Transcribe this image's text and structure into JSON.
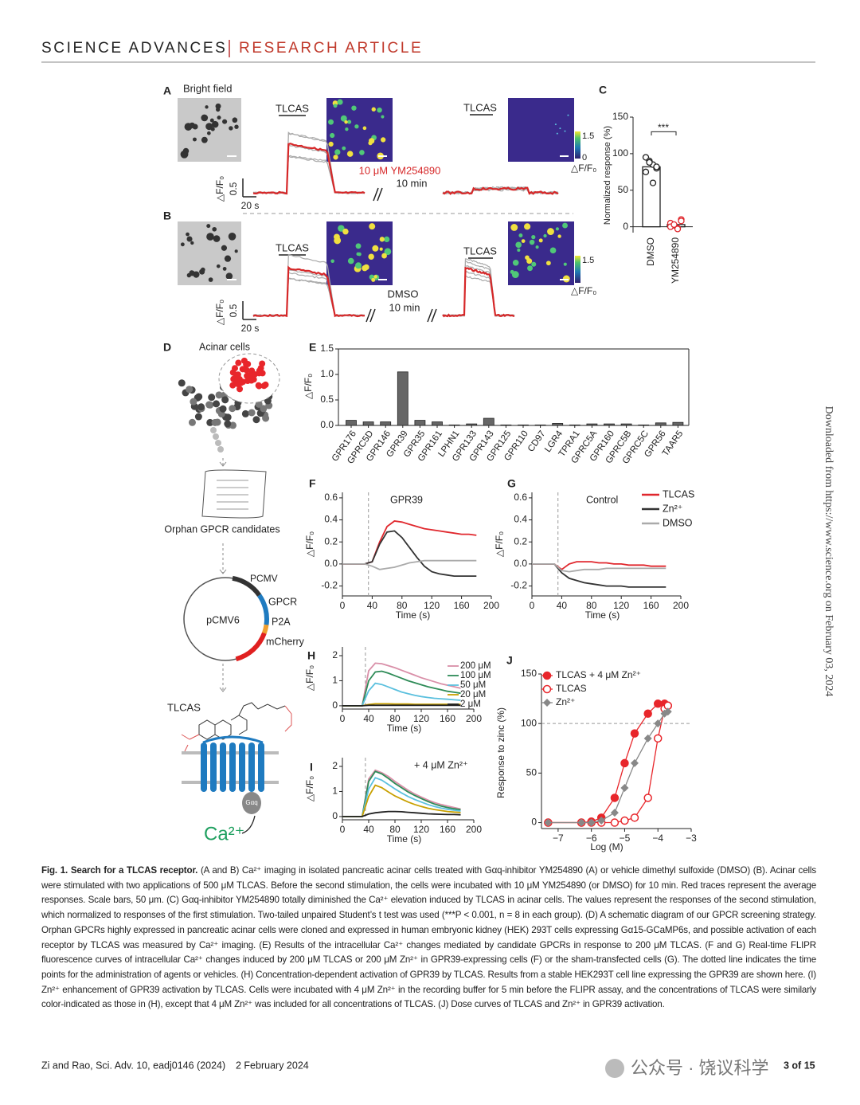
{
  "header": {
    "journal": "SCIENCE ADVANCES",
    "section": "RESEARCH ARTICLE"
  },
  "side_note": "Downloaded from https://www.science.org on February 03, 2024",
  "panel_A": {
    "label": "A",
    "bright_field": "Bright field",
    "stim1": "TLCAS",
    "stim2": "TLCAS",
    "treatment": "10 μM YM254890",
    "duration": "10 min",
    "cbar_max": 1.5,
    "cbar_min": 0,
    "cbar_label": "△F/F₀",
    "scale_y": 0.5,
    "scale_x": "20 s",
    "y_label": "△F/F₀"
  },
  "panel_B": {
    "label": "B",
    "stim1": "TLCAS",
    "stim2": "TLCAS",
    "treatment": "DMSO",
    "duration": "10 min",
    "cbar_max": 1.5,
    "cbar_label": "△F/F₀",
    "scale_y": 0.5,
    "scale_x": "20 s",
    "y_label": "△F/F₀"
  },
  "panel_C": {
    "type": "bar",
    "label": "C",
    "y_label": "Normalized response (%)",
    "categories": [
      "DMSO",
      "YM254890"
    ],
    "values": [
      82,
      3
    ],
    "points": [
      [
        95,
        90,
        85,
        80,
        75,
        88,
        60,
        82
      ],
      [
        5,
        2,
        -2,
        10,
        0,
        3,
        -3,
        8
      ]
    ],
    "colors": [
      "#222",
      "#e0272d"
    ],
    "ylim": [
      -8,
      150
    ],
    "yticks": [
      0,
      50,
      100,
      150
    ],
    "significance": "***"
  },
  "panel_D": {
    "label": "D",
    "acinar": "Acinar cells",
    "candidates": "Orphan GPCR candidates",
    "plasmid": "pCMV6",
    "promoter": "PCMV",
    "gpcr": "GPCR",
    "p2a": "P2A",
    "mcherry": "mCherry",
    "ligand": "TLCAS",
    "gprotein": "Gαq",
    "ion": "Ca²⁺"
  },
  "panel_E": {
    "type": "bar",
    "label": "E",
    "y_label": "△F/F₀",
    "categories": [
      "GPR176",
      "GPRC5D",
      "GPR146",
      "GPR39",
      "GPR35",
      "GPR161",
      "LPHN1",
      "GPR133",
      "GPR143",
      "GPR125",
      "GPR110",
      "CD97",
      "LGR4",
      "TPRA1",
      "GPRC5A",
      "GPR160",
      "GPRC5B",
      "GPRC5C",
      "GPR56",
      "TAAR5"
    ],
    "values": [
      0.1,
      0.07,
      0.07,
      1.05,
      0.1,
      0.07,
      0.01,
      0.03,
      0.14,
      0.01,
      0.01,
      0.01,
      0.04,
      0.01,
      0.03,
      0.03,
      0.03,
      0.01,
      0.05,
      0.06
    ],
    "color": "#666",
    "ylim": [
      0,
      1.5
    ],
    "yticks": [
      {
        "value": 0,
        "label": "0.0"
      },
      {
        "value": 0.5,
        "label": "0.5"
      },
      {
        "value": 1,
        "label": "1.0"
      },
      {
        "value": 1.5,
        "label": "1.5"
      }
    ]
  },
  "panel_F": {
    "type": "line",
    "label": "F",
    "title": "GPR39",
    "x_label": "Time (s)",
    "y_label": "△F/F₀",
    "vline": 35,
    "x": [
      0,
      10,
      20,
      30,
      40,
      50,
      60,
      70,
      80,
      90,
      100,
      110,
      120,
      130,
      140,
      150,
      160,
      170,
      180
    ],
    "series": [
      {
        "color": "#e0272d",
        "values": [
          0,
          0,
          0,
          0,
          0.02,
          0.2,
          0.34,
          0.39,
          0.38,
          0.36,
          0.34,
          0.32,
          0.31,
          0.3,
          0.29,
          0.28,
          0.27,
          0.27,
          0.26
        ]
      },
      {
        "color": "#333",
        "values": [
          0,
          0,
          0,
          0,
          0.02,
          0.18,
          0.29,
          0.3,
          0.24,
          0.15,
          0.06,
          -0.02,
          -0.07,
          -0.09,
          -0.1,
          -0.11,
          -0.11,
          -0.11,
          -0.11
        ]
      },
      {
        "color": "#aaa",
        "values": [
          0,
          0,
          0,
          0,
          -0.02,
          -0.05,
          -0.04,
          -0.03,
          -0.01,
          0.01,
          0.02,
          0.03,
          0.03,
          0.03,
          0.03,
          0.03,
          0.03,
          0.03,
          0.03
        ]
      }
    ],
    "xlim": [
      0,
      200
    ],
    "xticks": [
      0,
      40,
      80,
      120,
      160,
      200
    ],
    "ylim": [
      -0.29,
      0.65
    ],
    "yticks": [
      -0.2,
      {
        "value": 0,
        "label": "0.0"
      },
      0.2,
      0.4,
      0.6
    ]
  },
  "panel_G": {
    "type": "line",
    "label": "G",
    "title": "Control",
    "x_label": "Time (s)",
    "y_label": "△F/F₀",
    "vline": 35,
    "x": [
      0,
      10,
      20,
      30,
      40,
      50,
      60,
      70,
      80,
      90,
      100,
      110,
      120,
      130,
      140,
      150,
      160,
      170,
      180
    ],
    "series": [
      {
        "name": "TLCAS",
        "color": "#e0272d",
        "values": [
          0,
          0,
          0,
          0,
          -0.05,
          0,
          0.02,
          0.02,
          0.02,
          0.01,
          0.01,
          0,
          0,
          -0.01,
          -0.01,
          -0.01,
          -0.02,
          -0.02,
          -0.02
        ]
      },
      {
        "name": "Zn²⁺",
        "color": "#333",
        "values": [
          0,
          0,
          0,
          0,
          -0.08,
          -0.13,
          -0.15,
          -0.17,
          -0.18,
          -0.19,
          -0.2,
          -0.2,
          -0.2,
          -0.21,
          -0.21,
          -0.21,
          -0.21,
          -0.21,
          -0.21
        ]
      },
      {
        "name": "DMSO",
        "color": "#aaa",
        "values": [
          0,
          0,
          0,
          0,
          -0.06,
          -0.07,
          -0.06,
          -0.05,
          -0.05,
          -0.05,
          -0.04,
          -0.04,
          -0.04,
          -0.04,
          -0.04,
          -0.04,
          -0.04,
          -0.04,
          -0.04
        ]
      }
    ],
    "xlim": [
      0,
      200
    ],
    "xticks": [
      0,
      40,
      80,
      120,
      160,
      200
    ],
    "ylim": [
      -0.29,
      0.65
    ],
    "yticks": [
      -0.2,
      {
        "value": 0,
        "label": "0.0"
      },
      0.2,
      0.4,
      0.6
    ]
  },
  "panel_H": {
    "type": "line",
    "label": "H",
    "x_label": "Time (s)",
    "y_label": "△F/F₀",
    "vline": 35,
    "x": [
      0,
      10,
      20,
      30,
      40,
      50,
      60,
      70,
      80,
      90,
      100,
      110,
      120,
      130,
      140,
      150,
      160,
      170,
      180
    ],
    "series": [
      {
        "name": "200 μM",
        "color": "#d98fa8",
        "values": [
          0,
          0,
          0,
          0,
          1.4,
          1.7,
          1.68,
          1.6,
          1.52,
          1.42,
          1.32,
          1.22,
          1.12,
          1.04,
          0.96,
          0.88,
          0.82,
          0.76,
          0.7
        ]
      },
      {
        "name": "100 μM",
        "color": "#2e8b57",
        "values": [
          0,
          0,
          0,
          0,
          1,
          1.35,
          1.38,
          1.3,
          1.2,
          1.1,
          1,
          0.92,
          0.84,
          0.76,
          0.7,
          0.64,
          0.58,
          0.54,
          0.5
        ]
      },
      {
        "name": "50 μM",
        "color": "#5bc0de",
        "values": [
          0,
          0,
          0,
          0,
          0.6,
          0.9,
          0.85,
          0.75,
          0.65,
          0.55,
          0.48,
          0.42,
          0.37,
          0.33,
          0.3,
          0.28,
          0.26,
          0.24,
          0.22
        ]
      },
      {
        "name": "20 μM",
        "color": "#c8a000",
        "values": [
          0,
          0,
          0,
          0,
          0.05,
          0.08,
          0.08,
          0.08,
          0.07,
          0.07,
          0.07,
          0.06,
          0.06,
          0.06,
          0.06,
          0.06,
          0.06,
          0.06,
          0.06
        ]
      },
      {
        "name": "2 μM",
        "color": "#222",
        "values": [
          0,
          0,
          0,
          0,
          0.02,
          0.02,
          0.02,
          0.02,
          0.02,
          0.02,
          0.02,
          0.02,
          0.02,
          0.02,
          0.02,
          0.02,
          0.02,
          0.02,
          0.02
        ]
      }
    ],
    "xlim": [
      0,
      200
    ],
    "xticks": [
      0,
      40,
      80,
      120,
      160,
      200
    ],
    "ylim": [
      -0.13,
      2.35
    ],
    "yticks": [
      0,
      1,
      2
    ]
  },
  "panel_I": {
    "type": "line",
    "label": "I",
    "title": "+ 4 μM Zn²⁺",
    "x_label": "Time (s)",
    "y_label": "△F/F₀",
    "vline": 35,
    "x": [
      0,
      10,
      20,
      30,
      40,
      50,
      60,
      70,
      80,
      90,
      100,
      110,
      120,
      130,
      140,
      150,
      160,
      170,
      180
    ],
    "series": [
      {
        "color": "#d98fa8",
        "values": [
          0,
          0,
          0,
          0,
          1.5,
          1.85,
          1.75,
          1.6,
          1.4,
          1.22,
          1.05,
          0.9,
          0.78,
          0.66,
          0.56,
          0.48,
          0.42,
          0.36,
          0.3
        ]
      },
      {
        "color": "#2e8b57",
        "values": [
          0,
          0,
          0,
          0,
          1.4,
          1.8,
          1.7,
          1.52,
          1.32,
          1.15,
          0.98,
          0.84,
          0.72,
          0.6,
          0.5,
          0.42,
          0.36,
          0.31,
          0.27
        ]
      },
      {
        "color": "#5bc0de",
        "values": [
          0,
          0,
          0,
          0,
          1.1,
          1.55,
          1.45,
          1.28,
          1.1,
          0.94,
          0.8,
          0.68,
          0.58,
          0.48,
          0.4,
          0.34,
          0.29,
          0.25,
          0.22
        ]
      },
      {
        "color": "#c8a000",
        "values": [
          0,
          0,
          0,
          0,
          0.8,
          1.25,
          1.15,
          0.98,
          0.82,
          0.7,
          0.58,
          0.48,
          0.4,
          0.33,
          0.28,
          0.24,
          0.2,
          0.18,
          0.16
        ]
      },
      {
        "color": "#222",
        "values": [
          0,
          0,
          0,
          0,
          0.1,
          0.15,
          0.18,
          0.2,
          0.2,
          0.19,
          0.17,
          0.15,
          0.13,
          0.11,
          0.1,
          0.09,
          0.08,
          0.08,
          0.07
        ]
      }
    ],
    "xlim": [
      0,
      200
    ],
    "xticks": [
      0,
      40,
      80,
      120,
      160,
      200
    ],
    "ylim": [
      -0.13,
      2.35
    ],
    "yticks": [
      0,
      1,
      2
    ]
  },
  "panel_J": {
    "type": "scatter",
    "label": "J",
    "x_label": "Log (M)",
    "y_label": "Response to zinc (%)",
    "hline": 100,
    "x": [
      -7.3,
      -6.3,
      -6,
      -5.7,
      -5.3,
      -5,
      -4.7,
      -4.3,
      -4,
      -3.8,
      -3.7
    ],
    "series": [
      {
        "name": "TLCAS + 4 μM Zn²⁺",
        "color": "#e8262b",
        "marker": "filled",
        "values": [
          0,
          0,
          1,
          5,
          25,
          60,
          90,
          110,
          120,
          120,
          118
        ]
      },
      {
        "name": "TLCAS",
        "color": "#e8262b",
        "marker": "open",
        "values": [
          0,
          0,
          0,
          0,
          0,
          2,
          5,
          25,
          85,
          115,
          118
        ]
      },
      {
        "name": "Zn²⁺",
        "color": "#888",
        "marker": "diamond",
        "values": [
          0,
          0,
          0,
          2,
          10,
          35,
          60,
          85,
          100,
          110,
          112
        ]
      }
    ],
    "xlim": [
      -7.5,
      -3
    ],
    "xticks": [
      {
        "value": -7,
        "label": "−7"
      },
      {
        "value": -6,
        "label": "−6"
      },
      {
        "value": -5,
        "label": "−5"
      },
      {
        "value": -4,
        "label": "−4"
      },
      {
        "value": -3,
        "label": "−3"
      }
    ],
    "ylim": [
      -6,
      150
    ],
    "yticks": [
      0,
      50,
      100,
      150
    ]
  },
  "caption": {
    "label": "Fig. 1.",
    "title": "Search for a TLCAS receptor.",
    "body": "(A and B) Ca²⁺ imaging in isolated pancreatic acinar cells treated with Gαq-inhibitor YM254890 (A) or vehicle dimethyl sulfoxide (DMSO) (B). Acinar cells were stimulated with two applications of 500 μM TLCAS. Before the second stimulation, the cells were incubated with 10 μM YM254890 (or DMSO) for 10 min. Red traces represent the average responses. Scale bars, 50 μm. (C) Gαq-inhibitor YM254890 totally diminished the Ca²⁺ elevation induced by TLCAS in acinar cells. The values represent the responses of the second stimulation, which normalized to responses of the first stimulation. Two-tailed unpaired Student’s t test was used (***P < 0.001, n = 8 in each group). (D) A schematic diagram of our GPCR screening strategy. Orphan GPCRs highly expressed in pancreatic acinar cells were cloned and expressed in human embryonic kidney (HEK) 293T cells expressing Gα15-GCaMP6s, and possible activation of each receptor by TLCAS was measured by Ca²⁺ imaging. (E) Results of the intracellular Ca²⁺ changes mediated by candidate GPCRs in response to 200 μM TLCAS. (F and G) Real-time FLIPR fluorescence curves of intracellular Ca²⁺ changes induced by 200 μM TLCAS or 200 μM Zn²⁺ in GPR39-expressing cells (F) or the sham-transfected cells (G). The dotted line indicates the time points for the administration of agents or vehicles. (H) Concentration-dependent activation of GPR39 by TLCAS. Results from a stable HEK293T cell line expressing the GPR39 are shown here. (I) Zn²⁺ enhancement of GPR39 activation by TLCAS. Cells were incubated with 4 μM Zn²⁺ in the recording buffer for 5 min before the FLIPR assay, and the concentrations of TLCAS were similarly color-indicated as those in (H), except that 4 μM Zn²⁺ was included for all concentrations of TLCAS. (J) Dose curves of TLCAS and Zn²⁺ in GPR39 activation."
  },
  "footer": {
    "citation": "Zi and Rao, Sci. Adv. 10, eadj0146 (2024)",
    "date": "2 February 2024",
    "page": "3 of 15",
    "watermark": "公众号 · 饶议科学"
  }
}
